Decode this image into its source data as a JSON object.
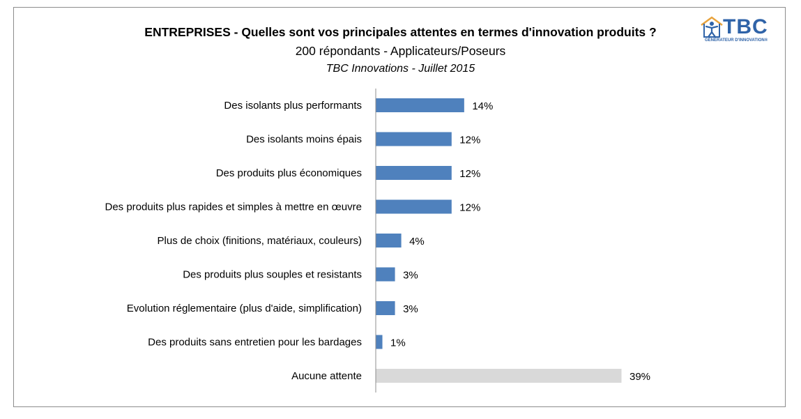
{
  "chart_data": {
    "type": "bar",
    "orientation": "horizontal",
    "title": "ENTREPRISES - Quelles sont vos principales attentes en termes d'innovation produits ?",
    "subtitle": "200 répondants - Applicateurs/Poseurs",
    "subtitle2": "TBC Innovations  - Juillet 2015",
    "categories": [
      "Des isolants  plus performants",
      "Des isolants  moins épais",
      "Des produits  plus économiques",
      "Des produits plus rapides et simples à mettre  en œuvre",
      "Plus de choix (finitions,  matériaux, couleurs)",
      "Des produits  plus souples et resistants",
      "Evolution réglementaire (plus d'aide,  simplification)",
      "Des produits sans entretien pour les bardages",
      "Aucune attente"
    ],
    "values": [
      14,
      12,
      12,
      12,
      4,
      3,
      3,
      1,
      39
    ],
    "value_labels": [
      "14%",
      "12%",
      "12%",
      "12%",
      "4%",
      "3%",
      "3%",
      "1%",
      "39%"
    ],
    "colors": [
      "#4f81bd",
      "#4f81bd",
      "#4f81bd",
      "#4f81bd",
      "#4f81bd",
      "#4f81bd",
      "#4f81bd",
      "#4f81bd",
      "#d9d9d9"
    ],
    "xlim": [
      0,
      39
    ],
    "grid": false,
    "legend": "none"
  },
  "logo": {
    "text": "TBC",
    "tagline": "GÉNÉRATEUR D'INNOVATION®",
    "color": "#2f63a8",
    "icon": "person-house-icon"
  }
}
